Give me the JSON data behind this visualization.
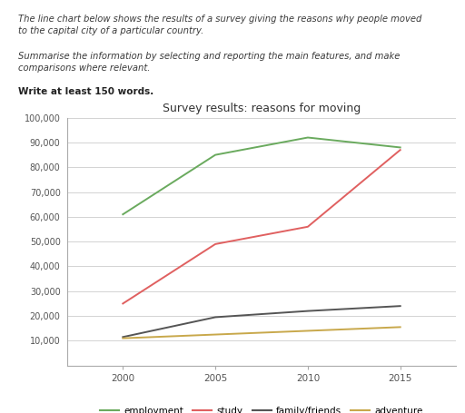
{
  "title": "Survey results: reasons for moving",
  "years": [
    2000,
    2005,
    2010,
    2015
  ],
  "series": {
    "employment": {
      "values": [
        61000,
        85000,
        92000,
        88000
      ],
      "color": "#6aaa5e"
    },
    "study": {
      "values": [
        25000,
        49000,
        56000,
        87000
      ],
      "color": "#e06060"
    },
    "family/friends": {
      "values": [
        11500,
        19500,
        22000,
        24000
      ],
      "color": "#555555"
    },
    "adventure": {
      "values": [
        11000,
        12500,
        14000,
        15500
      ],
      "color": "#c8a84b"
    }
  },
  "ylim": [
    0,
    100000
  ],
  "yticks": [
    0,
    10000,
    20000,
    30000,
    40000,
    50000,
    60000,
    70000,
    80000,
    90000,
    100000
  ],
  "xticks": [
    2000,
    2005,
    2010,
    2015
  ],
  "background_color": "#ffffff",
  "grid_color": "#cccccc",
  "xlim_left": 1997,
  "xlim_right": 2018,
  "line1_italic": "The line chart below shows the results of a survey giving the reasons why people moved",
  "line2_italic": "to the capital city of a particular country.",
  "line3_italic": "Summarise the information by selecting and reporting the main features, and make",
  "line4_italic": "comparisons where relevant.",
  "line5_bold": "Write at least 150 words."
}
